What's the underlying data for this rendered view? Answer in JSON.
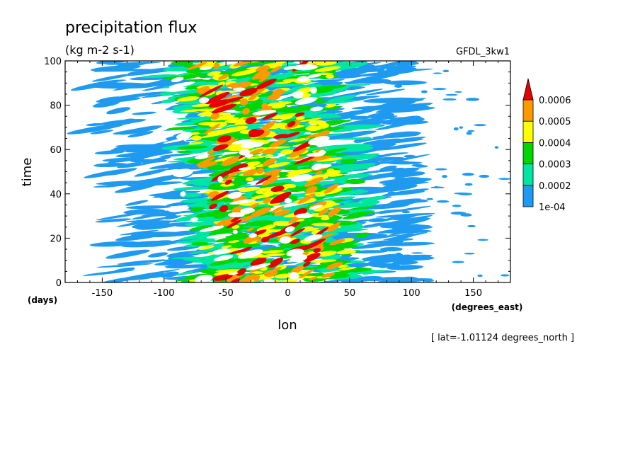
{
  "chart_data": {
    "type": "heatmap",
    "title": "precipitation flux",
    "subtitle": "(kg m-2 s-1)",
    "dataset_label": "GFDL_3kw1",
    "xlabel": "lon",
    "xunits": "(degrees_east)",
    "ylabel": "time",
    "yunits": "(days)",
    "footnote": "[ lat=-1.01124 degrees_north ]",
    "xlim": [
      -180,
      180
    ],
    "ylim": [
      0,
      100
    ],
    "x_ticks": [
      -150,
      -100,
      -50,
      0,
      50,
      100,
      150
    ],
    "x_tick_labels": [
      "-150",
      "-100",
      "-50",
      "0",
      "50",
      "100",
      "150"
    ],
    "y_ticks": [
      0,
      20,
      40,
      60,
      80,
      100
    ],
    "y_tick_labels": [
      "0",
      "20",
      "40",
      "60",
      "80",
      "100"
    ],
    "grid": false,
    "colorbar": {
      "position": "right",
      "levels": [
        0.0001,
        0.0002,
        0.0003,
        0.0004,
        0.0005,
        0.0006
      ],
      "labels": [
        "1e-04",
        "0.0002",
        "0.0003",
        "0.0004",
        "0.0005",
        "0.0006"
      ],
      "colors": [
        "#1e9bf0",
        "#00e6a0",
        "#00d700",
        "#ffff00",
        "#ff9900",
        "#e60000"
      ],
      "extends_max": true
    },
    "description_regions": [
      {
        "level": 0.0001,
        "x_range": [
          -180,
          95
        ]
      },
      {
        "level": 0.0002,
        "x_range": [
          -110,
          75
        ]
      },
      {
        "level": 0.0003,
        "x_range": [
          -100,
          60
        ]
      },
      {
        "level": 0.0004,
        "x_range": [
          -90,
          50
        ]
      },
      {
        "level": 0.0005,
        "x_range": [
          -80,
          40
        ]
      },
      {
        "level": 0.0006,
        "x_range": [
          -80,
          40
        ]
      }
    ]
  }
}
